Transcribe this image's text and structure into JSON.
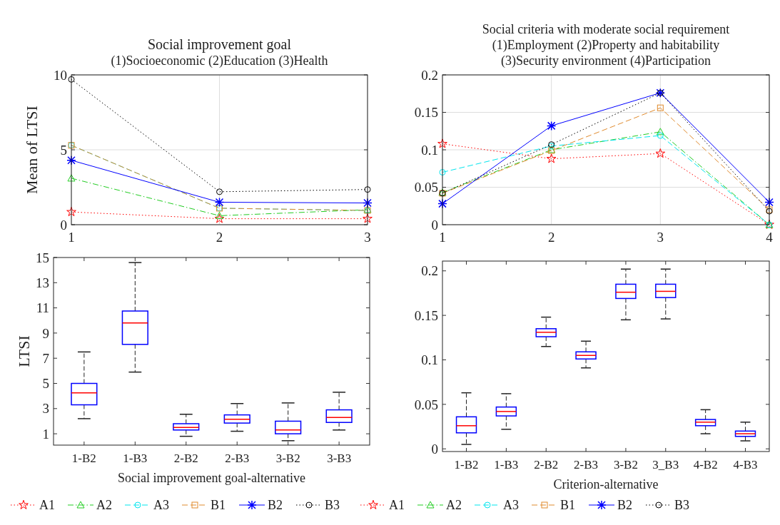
{
  "chart_data": [
    {
      "type": "line",
      "title": "Social improvement goal",
      "subtitle": "(1)Socioeconomic (2)Education (3)Health",
      "ylabel": "Mean of LTSI",
      "x": [
        1,
        2,
        3
      ],
      "xlim": [
        1,
        3
      ],
      "xticks": [
        1,
        2,
        3
      ],
      "ylim": [
        0,
        10
      ],
      "yticks": [
        0,
        5,
        10
      ],
      "grid": true,
      "legend": "bottom",
      "series": [
        {
          "name": "A1",
          "color": "#ff0000",
          "line_style": "dotted",
          "marker": "star",
          "values": [
            0.85,
            0.4,
            0.4
          ]
        },
        {
          "name": "A2",
          "color": "#22cc22",
          "line_style": "dashdot",
          "marker": "triangle",
          "values": [
            3.1,
            0.6,
            1.0
          ]
        },
        {
          "name": "A3",
          "color": "#00e5ee",
          "line_style": "dashed",
          "marker": "circle",
          "values": [
            5.3,
            1.1,
            0.95
          ]
        },
        {
          "name": "B1",
          "color": "#e08a2c",
          "line_style": "dashed",
          "marker": "square",
          "values": [
            5.3,
            1.1,
            0.95
          ]
        },
        {
          "name": "B2",
          "color": "#0000ff",
          "line_style": "solid",
          "marker": "cross",
          "values": [
            4.3,
            1.5,
            1.45
          ]
        },
        {
          "name": "B3",
          "color": "#000000",
          "line_style": "dotted",
          "marker": "circle",
          "values": [
            9.7,
            2.2,
            2.35
          ]
        }
      ]
    },
    {
      "type": "line",
      "title": "Social criteria with moderate social requirement",
      "subtitle": "(1)Employment (2)Property and habitability\n(3)Security environment (4)Participation",
      "x": [
        1,
        2,
        3,
        4
      ],
      "xlim": [
        1,
        4
      ],
      "xticks": [
        1,
        2,
        3,
        4
      ],
      "ylim": [
        0,
        0.2
      ],
      "yticks": [
        0,
        0.05,
        0.1,
        0.15,
        0.2
      ],
      "grid": true,
      "legend": "bottom",
      "series": [
        {
          "name": "A1",
          "color": "#ff0000",
          "line_style": "dotted",
          "marker": "star",
          "values": [
            0.108,
            0.088,
            0.095,
            0
          ]
        },
        {
          "name": "A2",
          "color": "#22cc22",
          "line_style": "dashdot",
          "marker": "triangle",
          "values": [
            0.043,
            0.1,
            0.124,
            0
          ]
        },
        {
          "name": "A3",
          "color": "#00e5ee",
          "line_style": "dashed",
          "marker": "circle",
          "values": [
            0.07,
            0.105,
            0.119,
            0
          ]
        },
        {
          "name": "B1",
          "color": "#e08a2c",
          "line_style": "dashed",
          "marker": "square",
          "values": [
            0.042,
            0.099,
            0.156,
            0.02
          ]
        },
        {
          "name": "B2",
          "color": "#0000ff",
          "line_style": "solid",
          "marker": "cross",
          "values": [
            0.028,
            0.132,
            0.176,
            0.03
          ]
        },
        {
          "name": "B3",
          "color": "#000000",
          "line_style": "dotted",
          "marker": "circle",
          "values": [
            0.042,
            0.107,
            0.176,
            0.018
          ]
        }
      ]
    },
    {
      "type": "box",
      "xlabel": "Social improvement goal-alternative",
      "ylabel": "LTSI",
      "categories": [
        "1-B2",
        "1-B3",
        "2-B2",
        "2-B3",
        "3-B2",
        "3-B3"
      ],
      "ylim": [
        0.1,
        15
      ],
      "yticks": [
        1,
        3,
        5,
        7,
        9,
        11,
        13,
        15
      ],
      "series": [
        {
          "color": "#0000ff",
          "boxes": [
            {
              "low": 2.2,
              "q1": 3.3,
              "median": 4.25,
              "q3": 5.0,
              "high": 7.5
            },
            {
              "low": 5.9,
              "q1": 8.1,
              "median": 9.8,
              "q3": 10.75,
              "high": 14.6
            },
            {
              "low": 0.8,
              "q1": 1.3,
              "median": 1.5,
              "q3": 1.8,
              "high": 2.55
            },
            {
              "low": 1.2,
              "q1": 1.85,
              "median": 2.15,
              "q3": 2.5,
              "high": 3.4
            },
            {
              "low": 0.45,
              "q1": 1.0,
              "median": 1.3,
              "q3": 2.0,
              "high": 3.45
            },
            {
              "low": 1.3,
              "q1": 1.9,
              "median": 2.3,
              "q3": 2.9,
              "high": 4.3
            }
          ]
        }
      ]
    },
    {
      "type": "box",
      "xlabel": "Criterion-alternative",
      "categories": [
        "1-B2",
        "1-B3",
        "2-B2",
        "2-B3",
        "3-B2",
        "3_B3",
        "4-B2",
        "4-B3"
      ],
      "ylim": [
        -0.003,
        0.211
      ],
      "yticks": [
        0,
        0.05,
        0.1,
        0.15,
        0.2
      ],
      "series": [
        {
          "color": "#0000ff",
          "boxes": [
            {
              "low": 0.005,
              "q1": 0.018,
              "median": 0.026,
              "q3": 0.036,
              "high": 0.063
            },
            {
              "low": 0.022,
              "q1": 0.037,
              "median": 0.042,
              "q3": 0.047,
              "high": 0.062
            },
            {
              "low": 0.115,
              "q1": 0.126,
              "median": 0.131,
              "q3": 0.135,
              "high": 0.148
            },
            {
              "low": 0.091,
              "q1": 0.101,
              "median": 0.105,
              "q3": 0.109,
              "high": 0.121
            },
            {
              "low": 0.145,
              "q1": 0.169,
              "median": 0.176,
              "q3": 0.185,
              "high": 0.202
            },
            {
              "low": 0.146,
              "q1": 0.17,
              "median": 0.177,
              "q3": 0.185,
              "high": 0.202
            },
            {
              "low": 0.017,
              "q1": 0.026,
              "median": 0.03,
              "q3": 0.033,
              "high": 0.044
            },
            {
              "low": 0.009,
              "q1": 0.014,
              "median": 0.017,
              "q3": 0.02,
              "high": 0.03
            }
          ]
        }
      ]
    }
  ]
}
